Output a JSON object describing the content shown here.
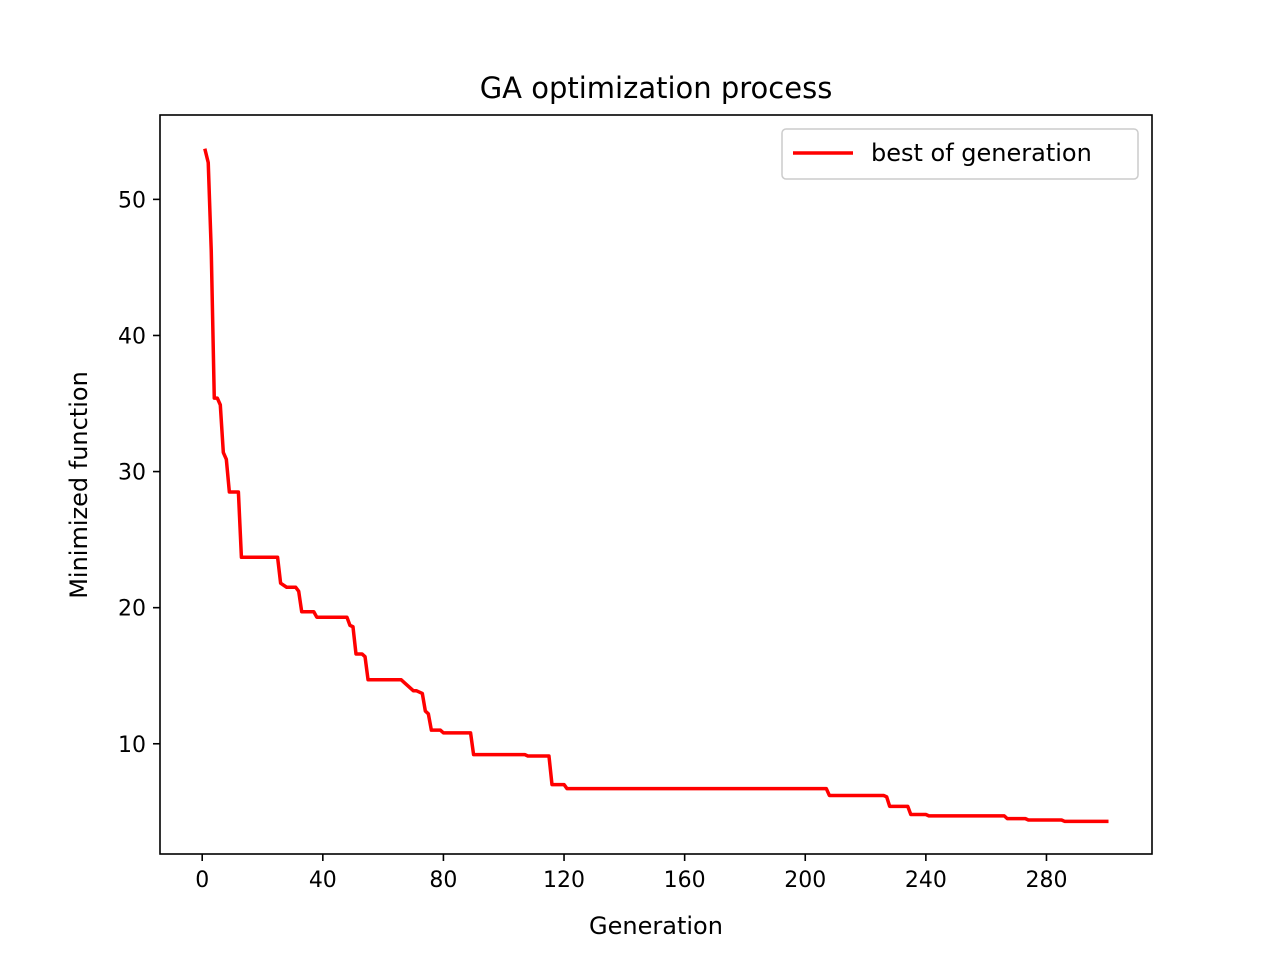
{
  "chart_data": {
    "type": "line",
    "title": "GA optimization process",
    "xlabel": "Generation",
    "ylabel": "Minimized function",
    "xlim": [
      -14,
      315
    ],
    "ylim": [
      1.9,
      56.2
    ],
    "xticks": [
      0,
      40,
      80,
      120,
      160,
      200,
      240,
      280
    ],
    "yticks": [
      10,
      20,
      30,
      40,
      50
    ],
    "grid": false,
    "legend": {
      "position": "top-right"
    },
    "series": [
      {
        "name": "best of generation",
        "color": "#ff0000",
        "x": [
          1,
          2,
          3,
          4,
          5,
          6,
          7,
          8,
          9,
          12,
          13,
          25,
          26,
          28,
          31,
          32,
          33,
          37,
          38,
          48,
          49,
          50,
          51,
          53,
          54,
          55,
          66,
          67,
          70,
          71,
          73,
          74,
          75,
          76,
          79,
          80,
          89,
          90,
          107,
          108,
          115,
          116,
          120,
          121,
          207,
          208,
          226,
          227,
          228,
          234,
          235,
          240,
          241,
          266,
          267,
          273,
          274,
          285,
          286,
          300
        ],
        "y": [
          53.6,
          52.7,
          46.2,
          35.4,
          35.4,
          34.9,
          31.4,
          30.9,
          28.5,
          28.5,
          23.7,
          23.7,
          21.8,
          21.5,
          21.5,
          21.2,
          19.7,
          19.7,
          19.3,
          19.3,
          18.7,
          18.6,
          16.6,
          16.6,
          16.4,
          14.7,
          14.7,
          14.5,
          13.9,
          13.9,
          13.7,
          12.4,
          12.2,
          11.0,
          11.0,
          10.8,
          10.8,
          9.2,
          9.2,
          9.1,
          9.1,
          7.0,
          7.0,
          6.7,
          6.7,
          6.2,
          6.2,
          6.1,
          5.4,
          5.4,
          4.8,
          4.8,
          4.7,
          4.7,
          4.5,
          4.5,
          4.4,
          4.4,
          4.3,
          4.3
        ]
      }
    ]
  }
}
